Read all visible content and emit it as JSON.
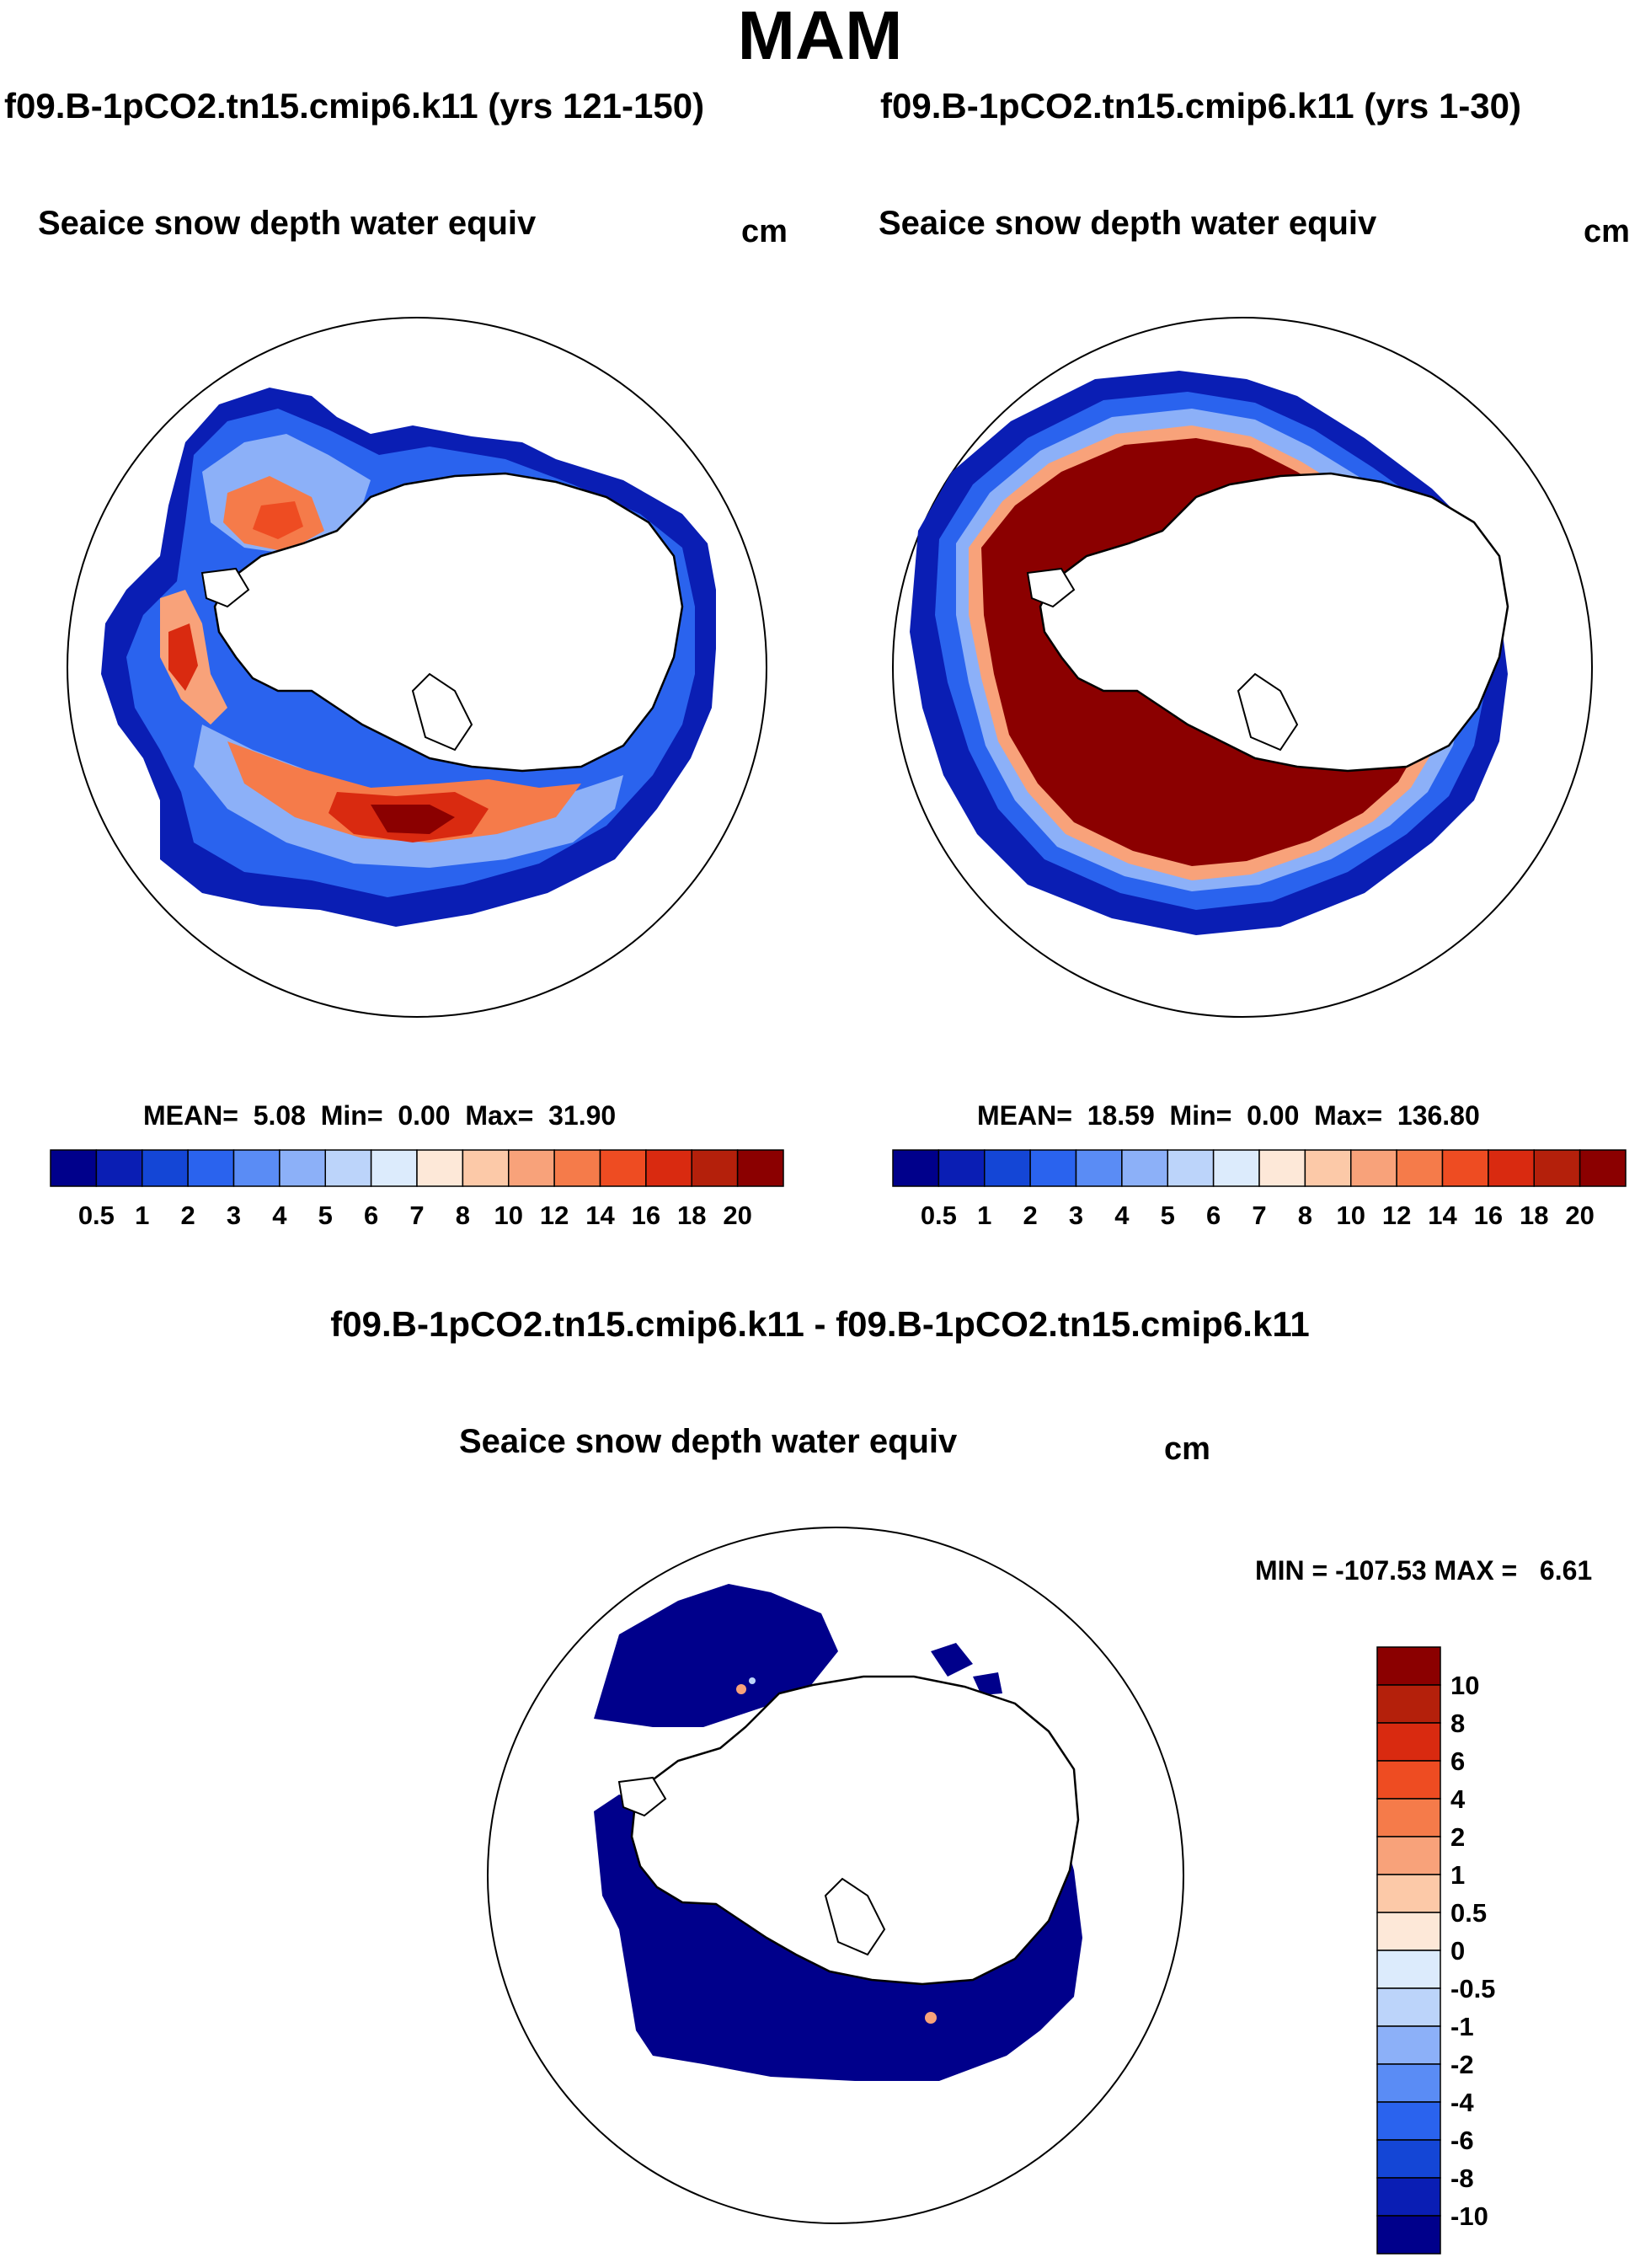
{
  "title": "MAM",
  "panels": [
    {
      "case_title": "f09.B-1pCO2.tn15.cmip6.k11 (yrs 121-150)",
      "variable": "Seaice snow depth water equiv",
      "units": "cm",
      "stats": {
        "mean_label": "MEAN=",
        "mean": "5.08",
        "min_label": "Min=",
        "min": "0.00",
        "max_label": "Max=",
        "max": "31.90"
      }
    },
    {
      "case_title": "f09.B-1pCO2.tn15.cmip6.k11 (yrs 1-30)",
      "variable": "Seaice snow depth water equiv",
      "units": "cm",
      "stats": {
        "mean_label": "MEAN=",
        "mean": "18.59",
        "min_label": "Min=",
        "min": "0.00",
        "max_label": "Max=",
        "max": "136.80"
      }
    }
  ],
  "abs_colorbar": {
    "labels": [
      "0.5",
      "1",
      "2",
      "3",
      "4",
      "5",
      "6",
      "7",
      "8",
      "10",
      "12",
      "14",
      "16",
      "18",
      "20"
    ],
    "colors": [
      "#00008b",
      "#0a1eb4",
      "#1446d6",
      "#2a63ee",
      "#5a8cf5",
      "#8cb0f8",
      "#bcd4fa",
      "#dcebfc",
      "#fde8d8",
      "#fcc9a8",
      "#f8a27a",
      "#f57b4a",
      "#ee4c22",
      "#d92a10",
      "#b4200b",
      "#8b0000"
    ]
  },
  "diff": {
    "title": "f09.B-1pCO2.tn15.cmip6.k11 - f09.B-1pCO2.tn15.cmip6.k11",
    "variable": "Seaice snow depth water equiv",
    "units": "cm",
    "stats": {
      "min_label": "MIN =",
      "min": "-107.53",
      "max_label": "MAX =",
      "max": "6.61"
    }
  },
  "diff_colorbar": {
    "labels": [
      "10",
      "8",
      "6",
      "4",
      "2",
      "1",
      "0.5",
      "0",
      "-0.5",
      "-1",
      "-2",
      "-4",
      "-6",
      "-8",
      "-10"
    ],
    "colors": [
      "#8b0000",
      "#b4200b",
      "#d92a10",
      "#ee4c22",
      "#f57b4a",
      "#f8a27a",
      "#fcc9a8",
      "#fde8d8",
      "#dcebfc",
      "#bcd4fa",
      "#8cb0f8",
      "#5a8cf5",
      "#2a63ee",
      "#1446d6",
      "#0a1eb4",
      "#00008b"
    ]
  }
}
